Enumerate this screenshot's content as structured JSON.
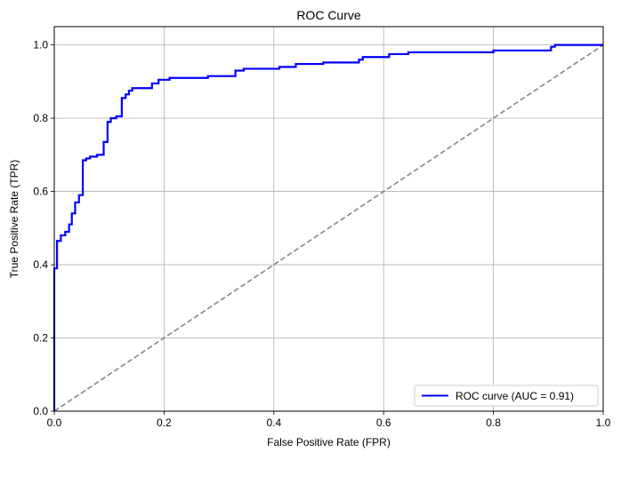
{
  "chart_data": {
    "type": "line",
    "title": "ROC Curve",
    "xlabel": "False Positive Rate (FPR)",
    "ylabel": "True Positive Rate (TPR)",
    "xlim": [
      0,
      1
    ],
    "ylim": [
      0,
      1.05
    ],
    "xticks": [
      0,
      0.2,
      0.4,
      0.6,
      0.8,
      1
    ],
    "xtick_labels": [
      "0.0",
      "0.2",
      "0.4",
      "0.6",
      "0.8",
      "1.0"
    ],
    "yticks": [
      0,
      0.2,
      0.4,
      0.6,
      0.8,
      1
    ],
    "ytick_labels": [
      "0.0",
      "0.2",
      "0.4",
      "0.6",
      "0.8",
      "1.0"
    ],
    "grid": true,
    "legend_position": "lower-right",
    "series": [
      {
        "name": "ROC curve (AUC = 0.91)",
        "color": "#0000ff",
        "style": "solid",
        "x": [
          0,
          0,
          0.005,
          0.005,
          0.012,
          0.012,
          0.02,
          0.02,
          0.027,
          0.027,
          0.032,
          0.032,
          0.038,
          0.038,
          0.045,
          0.045,
          0.052,
          0.052,
          0.058,
          0.058,
          0.065,
          0.065,
          0.078,
          0.078,
          0.09,
          0.09,
          0.097,
          0.097,
          0.103,
          0.103,
          0.113,
          0.113,
          0.123,
          0.123,
          0.13,
          0.13,
          0.136,
          0.136,
          0.142,
          0.142,
          0.178,
          0.178,
          0.19,
          0.19,
          0.21,
          0.21,
          0.28,
          0.28,
          0.33,
          0.33,
          0.345,
          0.345,
          0.41,
          0.41,
          0.44,
          0.44,
          0.49,
          0.49,
          0.555,
          0.555,
          0.562,
          0.562,
          0.61,
          0.61,
          0.645,
          0.645,
          0.8,
          0.8,
          0.905,
          0.905,
          0.912,
          0.912,
          1
        ],
        "y": [
          0,
          0.39,
          0.39,
          0.465,
          0.465,
          0.48,
          0.48,
          0.49,
          0.49,
          0.51,
          0.51,
          0.54,
          0.54,
          0.57,
          0.57,
          0.59,
          0.59,
          0.685,
          0.685,
          0.69,
          0.69,
          0.695,
          0.695,
          0.7,
          0.7,
          0.735,
          0.735,
          0.79,
          0.79,
          0.8,
          0.8,
          0.805,
          0.805,
          0.855,
          0.855,
          0.865,
          0.865,
          0.875,
          0.875,
          0.882,
          0.882,
          0.895,
          0.895,
          0.905,
          0.905,
          0.91,
          0.91,
          0.915,
          0.915,
          0.93,
          0.93,
          0.935,
          0.935,
          0.94,
          0.94,
          0.948,
          0.948,
          0.952,
          0.952,
          0.96,
          0.96,
          0.967,
          0.967,
          0.975,
          0.975,
          0.98,
          0.98,
          0.985,
          0.985,
          0.995,
          0.995,
          1,
          1
        ]
      },
      {
        "color": "#808080",
        "style": "dashed",
        "x": [
          0,
          1
        ],
        "y": [
          0,
          1
        ]
      }
    ]
  }
}
